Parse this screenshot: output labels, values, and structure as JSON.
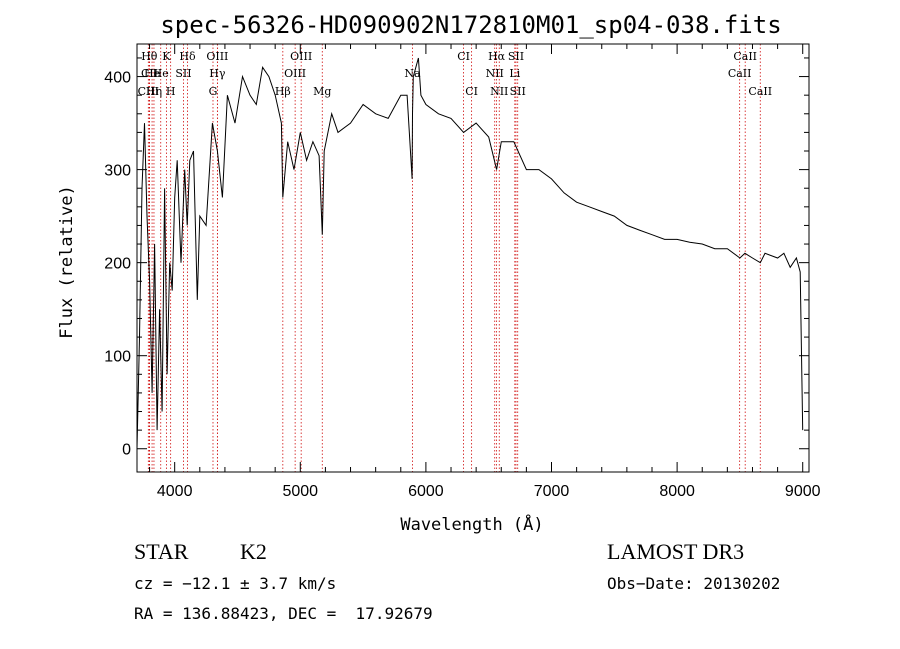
{
  "chart_data": {
    "type": "line",
    "title": "spec-56326-HD090902N172810M01_sp04-038.fits",
    "xlabel": "Wavelength (Å)",
    "ylabel": "Flux (relative)",
    "xlim": [
      3700,
      9050
    ],
    "ylim": [
      -25,
      435
    ],
    "xticks": [
      4000,
      5000,
      6000,
      7000,
      8000,
      9000
    ],
    "yticks": [
      0,
      100,
      200,
      300,
      400
    ],
    "series": [
      {
        "name": "spectrum",
        "x": [
          3700,
          3720,
          3740,
          3760,
          3780,
          3800,
          3820,
          3840,
          3860,
          3880,
          3900,
          3920,
          3940,
          3960,
          3980,
          4000,
          4020,
          4050,
          4080,
          4100,
          4120,
          4150,
          4180,
          4200,
          4250,
          4300,
          4340,
          4380,
          4420,
          4480,
          4540,
          4600,
          4650,
          4700,
          4750,
          4800,
          4850,
          4861,
          4900,
          4950,
          5000,
          5050,
          5100,
          5150,
          5175,
          5190,
          5250,
          5300,
          5400,
          5500,
          5600,
          5700,
          5800,
          5850,
          5890,
          5893,
          5900,
          5940,
          5960,
          6000,
          6100,
          6200,
          6300,
          6400,
          6500,
          6563,
          6600,
          6700,
          6800,
          6900,
          7000,
          7100,
          7200,
          7300,
          7400,
          7500,
          7600,
          7700,
          7800,
          7900,
          8000,
          8100,
          8200,
          8300,
          8400,
          8500,
          8540,
          8600,
          8662,
          8700,
          8800,
          8850,
          8900,
          8950,
          8980,
          9000
        ],
        "y": [
          0,
          120,
          280,
          350,
          250,
          180,
          60,
          220,
          20,
          150,
          40,
          280,
          80,
          200,
          170,
          270,
          310,
          200,
          300,
          240,
          310,
          320,
          160,
          250,
          240,
          350,
          320,
          270,
          380,
          350,
          400,
          380,
          370,
          410,
          400,
          380,
          350,
          270,
          330,
          300,
          340,
          310,
          330,
          315,
          230,
          320,
          360,
          340,
          350,
          370,
          360,
          355,
          380,
          380,
          290,
          360,
          400,
          420,
          380,
          370,
          360,
          355,
          340,
          350,
          335,
          300,
          330,
          330,
          300,
          300,
          290,
          275,
          265,
          260,
          255,
          250,
          240,
          235,
          230,
          225,
          225,
          222,
          220,
          215,
          215,
          205,
          210,
          205,
          200,
          210,
          205,
          210,
          195,
          205,
          190,
          20
        ]
      }
    ],
    "spectral_lines": [
      {
        "label": "Hθ",
        "x": 3798,
        "row": 1
      },
      {
        "label": "CII",
        "x": 3800,
        "row": 2
      },
      {
        "label": "CIII",
        "x": 3790,
        "row": 3
      },
      {
        "label": "He",
        "x": 3820,
        "row": 2
      },
      {
        "label": "Hη",
        "x": 3835,
        "row": 3
      },
      {
        "label": "K",
        "x": 3934,
        "row": 1
      },
      {
        "label": "He",
        "x": 3889,
        "row": 2
      },
      {
        "label": "SII",
        "x": 4070,
        "row": 2
      },
      {
        "label": "H",
        "x": 3968,
        "row": 3
      },
      {
        "label": "Hδ",
        "x": 4102,
        "row": 1
      },
      {
        "label": "OIII",
        "x": 4340,
        "row": 1
      },
      {
        "label": "Hγ",
        "x": 4340,
        "row": 2
      },
      {
        "label": "G",
        "x": 4305,
        "row": 3
      },
      {
        "label": "OIII",
        "x": 5007,
        "row": 1
      },
      {
        "label": "OIII",
        "x": 4959,
        "row": 2
      },
      {
        "label": "Hβ",
        "x": 4861,
        "row": 3
      },
      {
        "label": "Mg",
        "x": 5175,
        "row": 3
      },
      {
        "label": "Na",
        "x": 5893,
        "row": 2
      },
      {
        "label": "CI",
        "x": 6300,
        "row": 1
      },
      {
        "label": "CI",
        "x": 6364,
        "row": 3
      },
      {
        "label": "Hα",
        "x": 6563,
        "row": 1
      },
      {
        "label": "NII",
        "x": 6548,
        "row": 2
      },
      {
        "label": "NII",
        "x": 6584,
        "row": 3
      },
      {
        "label": "SII",
        "x": 6717,
        "row": 1
      },
      {
        "label": "Li",
        "x": 6708,
        "row": 2
      },
      {
        "label": "SII",
        "x": 6731,
        "row": 3
      },
      {
        "label": "CaII",
        "x": 8542,
        "row": 1
      },
      {
        "label": "CaII",
        "x": 8498,
        "row": 2
      },
      {
        "label": "CaII",
        "x": 8662,
        "row": 3
      }
    ]
  },
  "info": {
    "object_class": "STAR",
    "subclass": "K2",
    "survey": "LAMOST DR3",
    "cz": "cz = −12.1 ± 3.7 km/s",
    "obs_date": "Obs−Date: 20130202",
    "coords": "RA = 136.88423, DEC =  17.92679"
  },
  "colors": {
    "line_marker": "#d01010",
    "spectrum": "#000000",
    "axes": "#000000"
  }
}
